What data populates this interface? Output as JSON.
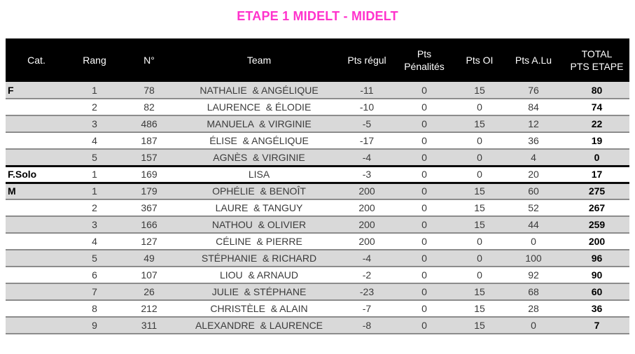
{
  "title": "ETAPE 1 MIDELT - MIDELT",
  "colors": {
    "title_color": "#FF33CC",
    "header_bg": "#000000",
    "header_text": "#FFFFFF",
    "row_stripe": "#D9D9D9",
    "separator": "#8C8C8C",
    "section_border": "#0A0A0A",
    "data_text": "#3B3B3B"
  },
  "table": {
    "columns": [
      {
        "label": "Cat."
      },
      {
        "label": "Rang"
      },
      {
        "label": "N°"
      },
      {
        "label": "Team"
      },
      {
        "label": "Pts régul"
      },
      {
        "label": "Pts",
        "label2": "Pénalités"
      },
      {
        "label": "Pts OI"
      },
      {
        "label": "Pts A.Lu"
      },
      {
        "label": "TOTAL",
        "label2": "PTS ETAPE"
      }
    ],
    "rows": [
      {
        "cat": "F",
        "rang": "1",
        "num": "78",
        "team": "NATHALIE  & ANGÉLIQUE",
        "regul": "-11",
        "pen": "0",
        "oi": "15",
        "alu": "76",
        "total": "80"
      },
      {
        "cat": "",
        "rang": "2",
        "num": "82",
        "team": "LAURENCE  & ÉLODIE",
        "regul": "-10",
        "pen": "0",
        "oi": "0",
        "alu": "84",
        "total": "74"
      },
      {
        "cat": "",
        "rang": "3",
        "num": "486",
        "team": "MANUELA  & VIRGINIE",
        "regul": "-5",
        "pen": "0",
        "oi": "15",
        "alu": "12",
        "total": "22"
      },
      {
        "cat": "",
        "rang": "4",
        "num": "187",
        "team": "ÉLISE  & ANGÉLIQUE",
        "regul": "-17",
        "pen": "0",
        "oi": "0",
        "alu": "36",
        "total": "19"
      },
      {
        "cat": "",
        "rang": "5",
        "num": "157",
        "team": "AGNÈS  & VIRGINIE",
        "regul": "-4",
        "pen": "0",
        "oi": "0",
        "alu": "4",
        "total": "0"
      },
      {
        "cat": "F.Solo",
        "rang": "1",
        "num": "169",
        "team": "LISA",
        "regul": "-3",
        "pen": "0",
        "oi": "0",
        "alu": "20",
        "total": "17",
        "section_start": true
      },
      {
        "cat": "M",
        "rang": "1",
        "num": "179",
        "team": "OPHÉLIE  & BENOÎT",
        "regul": "200",
        "pen": "0",
        "oi": "15",
        "alu": "60",
        "total": "275",
        "section_start": true
      },
      {
        "cat": "",
        "rang": "2",
        "num": "367",
        "team": "LAURE  & TANGUY",
        "regul": "200",
        "pen": "0",
        "oi": "15",
        "alu": "52",
        "total": "267"
      },
      {
        "cat": "",
        "rang": "3",
        "num": "166",
        "team": "NATHOU  & OLIVIER",
        "regul": "200",
        "pen": "0",
        "oi": "15",
        "alu": "44",
        "total": "259"
      },
      {
        "cat": "",
        "rang": "4",
        "num": "127",
        "team": "CÉLINE  & PIERRE",
        "regul": "200",
        "pen": "0",
        "oi": "0",
        "alu": "0",
        "total": "200"
      },
      {
        "cat": "",
        "rang": "5",
        "num": "49",
        "team": "STÉPHANIE  & RICHARD",
        "regul": "-4",
        "pen": "0",
        "oi": "0",
        "alu": "100",
        "total": "96"
      },
      {
        "cat": "",
        "rang": "6",
        "num": "107",
        "team": "LIOU  & ARNAUD",
        "regul": "-2",
        "pen": "0",
        "oi": "0",
        "alu": "92",
        "total": "90"
      },
      {
        "cat": "",
        "rang": "7",
        "num": "26",
        "team": "JULIE  & STÉPHANE",
        "regul": "-23",
        "pen": "0",
        "oi": "15",
        "alu": "68",
        "total": "60"
      },
      {
        "cat": "",
        "rang": "8",
        "num": "212",
        "team": "CHRISTÈLE  & ALAIN",
        "regul": "-7",
        "pen": "0",
        "oi": "15",
        "alu": "28",
        "total": "36"
      },
      {
        "cat": "",
        "rang": "9",
        "num": "311",
        "team": "ALEXANDRE  & LAURENCE",
        "regul": "-8",
        "pen": "0",
        "oi": "15",
        "alu": "0",
        "total": "7"
      }
    ]
  }
}
